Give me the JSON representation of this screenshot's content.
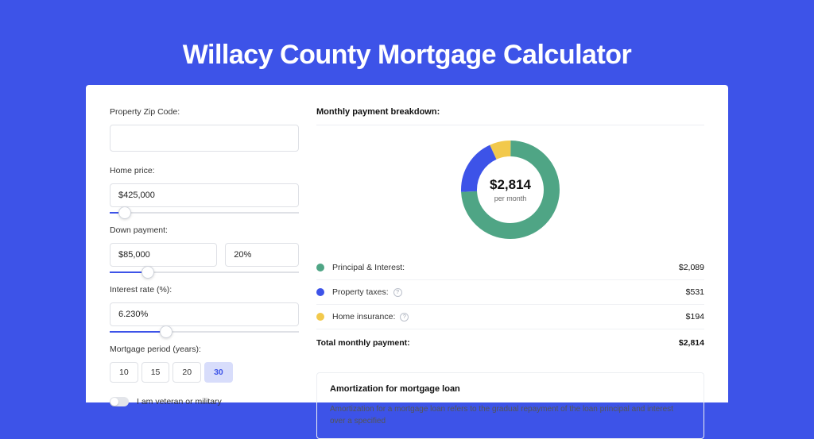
{
  "title": "Willacy County Mortgage Calculator",
  "colors": {
    "page_bg": "#3d53e8",
    "card_bg": "#ffffff",
    "input_border": "#dfe1e6",
    "pill_selected_bg": "#d8ddfb"
  },
  "left": {
    "zip": {
      "label": "Property Zip Code:",
      "value": ""
    },
    "home_price": {
      "label": "Home price:",
      "value": "$425,000",
      "slider_pct": 8
    },
    "down_payment": {
      "label": "Down payment:",
      "amount": "$85,000",
      "pct": "20%",
      "slider_pct": 20
    },
    "interest": {
      "label": "Interest rate (%):",
      "value": "6.230%",
      "slider_pct": 30
    },
    "period": {
      "label": "Mortgage period (years):",
      "options": [
        "10",
        "15",
        "20",
        "30"
      ],
      "selected": "30"
    },
    "veteran": {
      "label": "I am veteran or military",
      "on": false
    }
  },
  "breakdown": {
    "title": "Monthly payment breakdown:",
    "donut": {
      "total_label": "per month",
      "total_value": "$2,814",
      "slices": [
        {
          "key": "pi",
          "label": "Principal & Interest:",
          "value": "$2,089",
          "amount": 2089,
          "color": "#4fa585",
          "has_info": false
        },
        {
          "key": "pt",
          "label": "Property taxes:",
          "value": "$531",
          "amount": 531,
          "color": "#3d53e8",
          "has_info": true
        },
        {
          "key": "hi",
          "label": "Home insurance:",
          "value": "$194",
          "amount": 194,
          "color": "#f2c94c",
          "has_info": true
        }
      ],
      "stroke_width": 20,
      "bg": "#ffffff"
    },
    "total_row": {
      "label": "Total monthly payment:",
      "value": "$2,814"
    }
  },
  "amortization": {
    "title": "Amortization for mortgage loan",
    "text": "Amortization for a mortgage loan refers to the gradual repayment of the loan principal and interest over a specified"
  }
}
